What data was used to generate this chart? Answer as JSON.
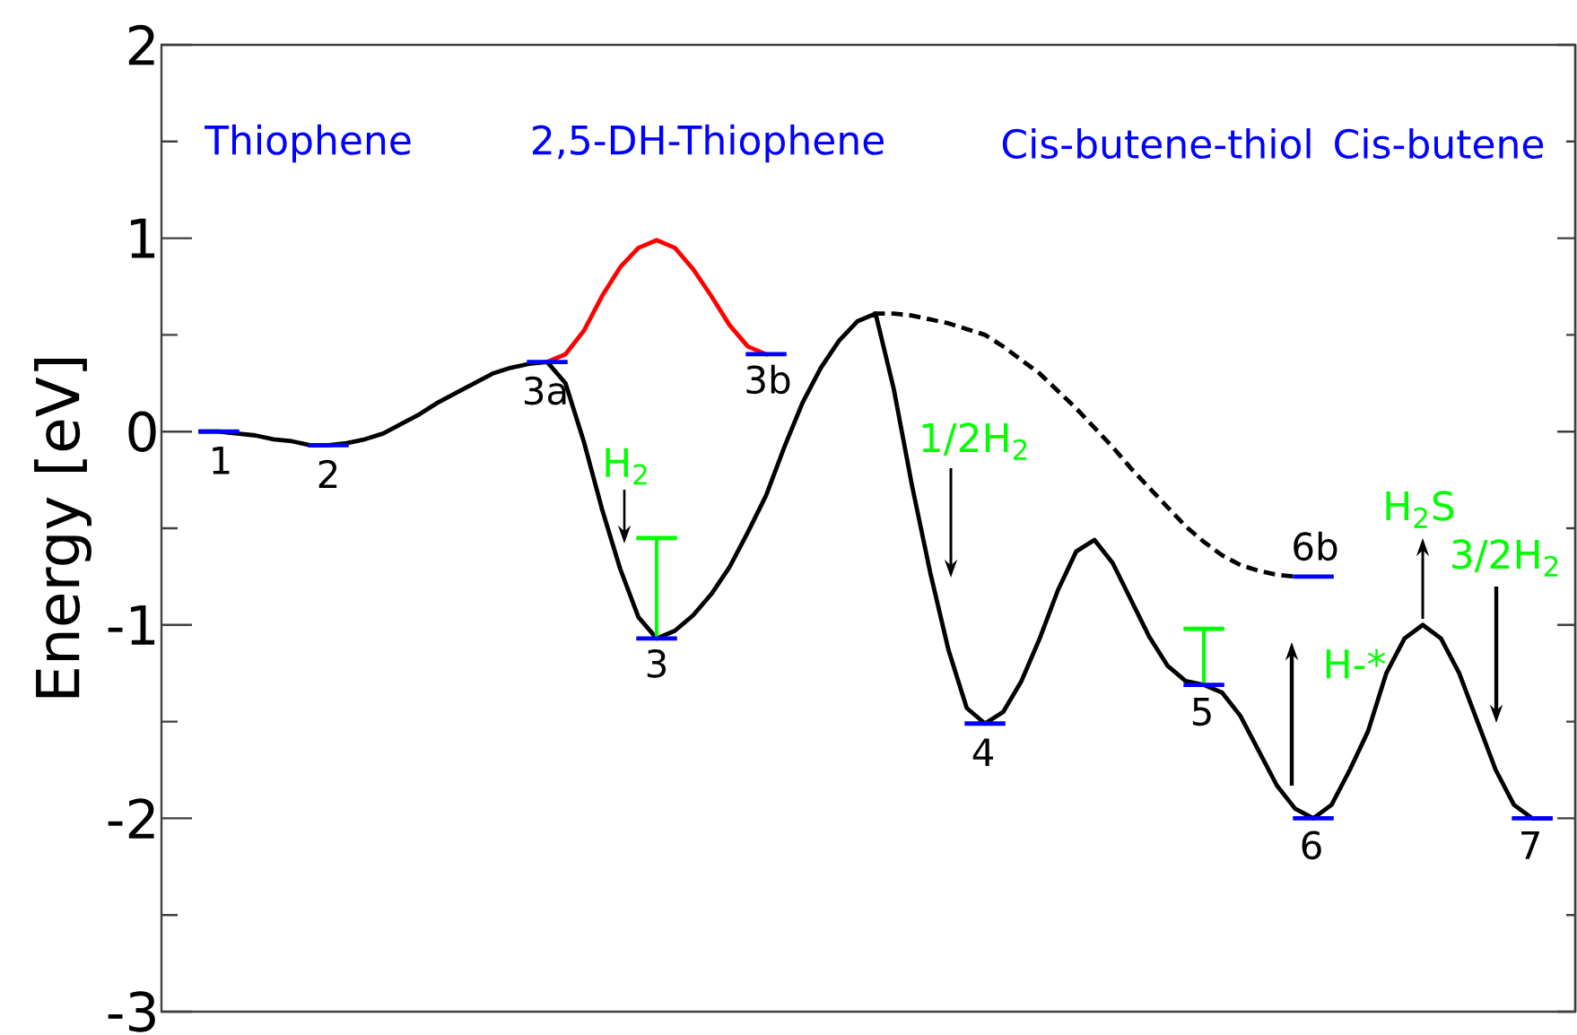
{
  "chart_data": {
    "type": "line",
    "ylabel": "Energy [eV]",
    "categories": [
      null,
      null,
      null,
      null,
      null,
      null,
      null,
      null,
      null,
      null,
      null,
      null,
      null,
      null,
      null,
      null,
      null,
      null,
      null,
      null,
      null,
      null,
      null,
      null,
      null,
      null,
      null,
      null,
      null,
      null,
      null,
      null,
      null,
      null,
      null,
      null,
      null,
      null,
      null,
      null,
      null,
      null,
      null,
      null,
      null,
      null,
      null,
      null,
      null,
      null,
      null,
      null,
      null,
      null,
      null,
      null,
      null,
      null,
      null,
      null,
      null,
      null,
      null,
      null,
      null,
      null,
      null,
      null,
      null,
      null,
      null,
      null,
      null,
      null,
      null
    ],
    "series": [
      {
        "color": "#000000",
        "values": [
          0,
          0,
          -0.01,
          -0.02,
          -0.04,
          -0.05,
          -0.07,
          -0.07,
          -0.06,
          -0.04,
          -0.01,
          0.04,
          0.09,
          0.15,
          0.2,
          0.25,
          0.3,
          0.33,
          0.35,
          0.36,
          0.25,
          -0.05,
          -0.4,
          -0.71,
          -0.96,
          -1.07,
          -1.03,
          -0.95,
          -0.84,
          -0.7,
          -0.52,
          -0.33,
          -0.08,
          0.15,
          0.33,
          0.47,
          0.57,
          0.61,
          0.22,
          -0.28,
          -0.73,
          -1.13,
          -1.43,
          -1.51,
          -1.45,
          -1.29,
          -1.07,
          -0.82,
          -0.62,
          -0.56,
          -0.68,
          -0.87,
          -1.06,
          -1.21,
          -1.29,
          -1.31,
          -1.35,
          -1.47,
          -1.65,
          -1.83,
          -1.95,
          -2.0,
          -1.93,
          -1.75,
          -1.55,
          -1.25,
          -1.07,
          -1.0,
          -1.07,
          -1.25,
          -1.5,
          -1.75,
          -1.93,
          -2.0,
          -2.0
        ]
      },
      {
        "color": "#ff0000",
        "values": [
          null,
          null,
          null,
          null,
          null,
          null,
          null,
          null,
          null,
          null,
          null,
          null,
          null,
          null,
          null,
          null,
          null,
          null,
          null,
          0.36,
          0.4,
          0.52,
          0.7,
          0.85,
          0.95,
          0.99,
          0.95,
          0.84,
          0.7,
          0.55,
          0.44,
          0.4,
          null,
          null,
          null,
          null,
          null,
          null,
          null,
          null,
          null,
          null,
          null,
          null,
          null,
          null,
          null,
          null,
          null,
          null,
          null,
          null,
          null,
          null,
          null,
          null,
          null,
          null,
          null,
          null,
          null,
          null,
          null,
          null,
          null,
          null,
          null,
          null,
          null,
          null,
          null,
          null,
          null,
          null,
          null
        ]
      },
      {
        "color": "#000000",
        "line_style": "dashed",
        "values": [
          null,
          null,
          null,
          null,
          null,
          null,
          null,
          null,
          null,
          null,
          null,
          null,
          null,
          null,
          null,
          null,
          null,
          null,
          null,
          null,
          null,
          null,
          null,
          null,
          null,
          null,
          null,
          null,
          null,
          null,
          null,
          null,
          null,
          null,
          null,
          null,
          null,
          0.61,
          0.61,
          0.6,
          0.58,
          0.56,
          0.53,
          0.5,
          0.44,
          0.37,
          0.3,
          0.21,
          0.12,
          0.02,
          -0.08,
          -0.19,
          -0.29,
          -0.39,
          -0.49,
          -0.57,
          -0.64,
          -0.69,
          -0.72,
          -0.74,
          -0.75,
          null,
          null,
          null,
          null,
          null,
          null,
          null,
          null,
          null,
          null,
          null,
          null,
          null,
          null
        ]
      },
      {
        "color": "#00ff00",
        "values": [
          null,
          null,
          null,
          null,
          null,
          null,
          null,
          null,
          null,
          null,
          null,
          null,
          null,
          null,
          null,
          null,
          null,
          null,
          null,
          null,
          null,
          null,
          null,
          null,
          -0.55,
          -0.55,
          -0.55,
          null,
          null,
          null,
          null,
          null,
          null,
          null,
          null,
          null,
          null,
          null,
          null,
          null,
          null,
          null,
          null,
          null,
          null,
          null,
          null,
          null,
          null,
          null,
          null,
          null,
          null,
          null,
          -1.02,
          -1.02,
          -1.02,
          null,
          null,
          null,
          null,
          null,
          null,
          null,
          null,
          null,
          null,
          null,
          null,
          null,
          null,
          null,
          null,
          null,
          null
        ],
        "errors": [
          null,
          null,
          null,
          null,
          null,
          null,
          null,
          null,
          null,
          null,
          null,
          null,
          null,
          null,
          null,
          null,
          null,
          null,
          null,
          null,
          null,
          null,
          null,
          null,
          null,
          [
            -1.07,
            -0.55
          ],
          null,
          null,
          null,
          null,
          null,
          null,
          null,
          null,
          null,
          null,
          null,
          null,
          null,
          null,
          null,
          null,
          null,
          null,
          null,
          null,
          null,
          null,
          null,
          null,
          null,
          null,
          null,
          null,
          null,
          [
            -1.31,
            -1.02
          ],
          null,
          null,
          null,
          null,
          null,
          null,
          null,
          null,
          null,
          null,
          null,
          null,
          null,
          null,
          null,
          null,
          null,
          null,
          null
        ]
      },
      {
        "color": "#0000ff",
        "values": [
          0,
          0,
          0,
          null,
          null,
          null,
          -0.07,
          -0.07,
          -0.07,
          null,
          null,
          null,
          null,
          null,
          null,
          null,
          null,
          null,
          0.36,
          0.36,
          0.36,
          null,
          null,
          null,
          -1.07,
          -1.07,
          -1.07,
          null,
          null,
          null,
          0.4,
          0.4,
          0.4,
          null,
          null,
          null,
          null,
          null,
          null,
          null,
          null,
          null,
          -1.51,
          -1.51,
          -1.51,
          null,
          null,
          null,
          null,
          null,
          null,
          null,
          null,
          null,
          -1.31,
          -1.31,
          -1.31,
          null,
          null,
          null,
          -2.0,
          -2.0,
          -2.0,
          null,
          null,
          null,
          null,
          null,
          null,
          null,
          null,
          null,
          -2.0,
          -2.0,
          -2.0
        ]
      },
      {
        "color": "#0000ff",
        "values": [
          null,
          null,
          null,
          null,
          null,
          null,
          null,
          null,
          null,
          null,
          null,
          null,
          null,
          null,
          null,
          null,
          null,
          null,
          null,
          null,
          null,
          null,
          null,
          null,
          null,
          null,
          null,
          null,
          null,
          null,
          null,
          null,
          null,
          null,
          null,
          null,
          null,
          null,
          null,
          null,
          null,
          null,
          null,
          null,
          null,
          null,
          null,
          null,
          null,
          null,
          null,
          null,
          null,
          null,
          null,
          null,
          null,
          null,
          null,
          null,
          -0.75,
          -0.75,
          -0.75,
          null,
          null,
          null,
          null,
          null,
          null,
          null,
          null,
          null,
          null,
          null,
          null
        ]
      }
    ],
    "ylim": [
      -3,
      2
    ],
    "yticks": [
      -3,
      {
        "value": -2.5,
        "label": null
      },
      -2,
      {
        "value": -1.5,
        "label": null
      },
      -1,
      {
        "value": -0.5,
        "label": null
      },
      0,
      {
        "value": 0.5,
        "label": null
      },
      1,
      {
        "value": 1.5,
        "label": null
      },
      2
    ],
    "tick_labels": "y",
    "annotations": [
      "Thiophene",
      "2,5-DH-Thiophene",
      "Cis-butene-thiol",
      "Cis-butene",
      {
        "text": "1",
        "y": 0
      },
      {
        "text": "2",
        "y": -0.07
      },
      {
        "text": "3a",
        "y": 0.36
      },
      {
        "text": "3",
        "y": -1.07
      },
      {
        "text": "3b",
        "y": 0.4
      },
      {
        "text": "4",
        "y": -1.51
      },
      {
        "text": "5",
        "y": -1.31
      },
      {
        "text": "6",
        "y": -2.0
      },
      {
        "text": "6b",
        "y": -0.75
      },
      {
        "text": "7",
        "y": -2.0
      },
      "H$_{2}$",
      "1/2H$_{2}$",
      "H-*",
      "H$_{2}$S",
      "3/2H$_{2}$"
    ]
  }
}
